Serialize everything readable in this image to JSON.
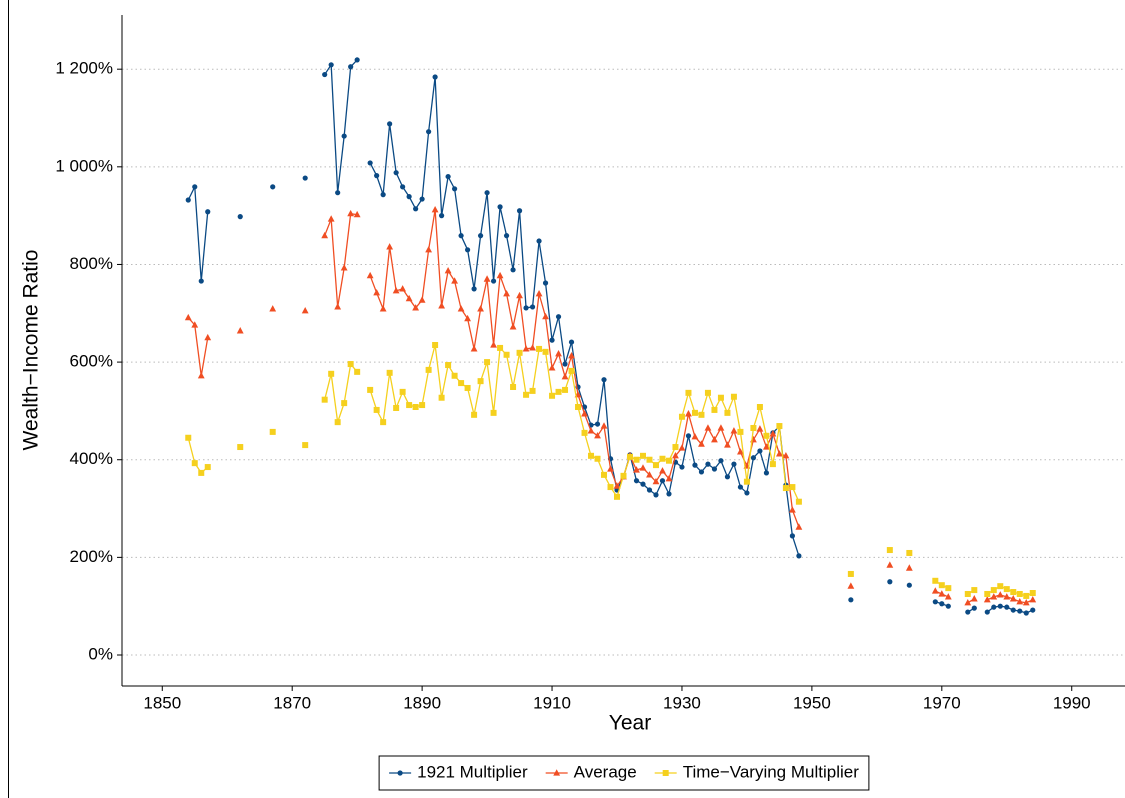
{
  "chart_data": {
    "type": "line",
    "x_label": "Year",
    "y_label": "Wealth−Income Ratio",
    "x": [
      1854,
      1855,
      1856,
      1857,
      1858,
      1862,
      1863,
      1867,
      1868,
      1872,
      1873,
      1875,
      1876,
      1877,
      1878,
      1879,
      1880,
      1881,
      1882,
      1883,
      1884,
      1885,
      1886,
      1887,
      1888,
      1889,
      1890,
      1891,
      1892,
      1893,
      1894,
      1895,
      1896,
      1897,
      1898,
      1899,
      1900,
      1901,
      1902,
      1903,
      1904,
      1905,
      1906,
      1907,
      1908,
      1909,
      1910,
      1911,
      1912,
      1913,
      1914,
      1915,
      1916,
      1917,
      1918,
      1919,
      1920,
      1921,
      1922,
      1923,
      1924,
      1925,
      1926,
      1927,
      1928,
      1929,
      1930,
      1931,
      1932,
      1933,
      1934,
      1935,
      1936,
      1937,
      1938,
      1939,
      1940,
      1941,
      1942,
      1943,
      1944,
      1945,
      1946,
      1947,
      1948,
      1949,
      1956,
      1957,
      1962,
      1963,
      1965,
      1966,
      1969,
      1970,
      1971,
      1972,
      1974,
      1975,
      1976,
      1977,
      1978,
      1979,
      1980,
      1981,
      1982,
      1983,
      1984
    ],
    "series": [
      {
        "name": "1921 Multiplier",
        "color": "#0b4a84",
        "marker": "circle",
        "values": [
          932,
          959,
          766,
          908,
          null,
          898,
          null,
          959,
          null,
          977,
          null,
          1189,
          1209,
          947,
          1063,
          1205,
          1219,
          null,
          1008,
          982,
          943,
          1088,
          988,
          959,
          939,
          914,
          934,
          1072,
          1184,
          900,
          980,
          955,
          859,
          830,
          750,
          859,
          947,
          766,
          918,
          859,
          789,
          910,
          711,
          713,
          848,
          762,
          645,
          693,
          596,
          641,
          549,
          508,
          471,
          473,
          564,
          402,
          338,
          365,
          410,
          357,
          350,
          338,
          328,
          357,
          330,
          395,
          385,
          449,
          389,
          375,
          391,
          381,
          398,
          365,
          391,
          344,
          332,
          404,
          418,
          373,
          455,
          469,
          348,
          244,
          203,
          null,
          113,
          null,
          150,
          null,
          143,
          null,
          109,
          105,
          100,
          null,
          88,
          96,
          null,
          88,
          98,
          100,
          98,
          92,
          90,
          86,
          92
        ]
      },
      {
        "name": "Average",
        "color": "#f04e23",
        "marker": "triangle",
        "values": [
          691,
          676,
          572,
          650,
          null,
          664,
          null,
          709,
          null,
          705,
          null,
          859,
          893,
          713,
          793,
          904,
          902,
          null,
          777,
          742,
          709,
          836,
          746,
          750,
          730,
          711,
          727,
          830,
          912,
          715,
          787,
          766,
          709,
          689,
          627,
          709,
          770,
          635,
          777,
          740,
          672,
          736,
          627,
          629,
          740,
          693,
          588,
          617,
          570,
          613,
          533,
          494,
          459,
          449,
          469,
          381,
          346,
          365,
          408,
          379,
          383,
          369,
          355,
          377,
          361,
          408,
          424,
          494,
          447,
          432,
          465,
          441,
          465,
          430,
          459,
          416,
          387,
          441,
          463,
          426,
          453,
          412,
          408,
          297,
          262,
          null,
          141,
          null,
          184,
          null,
          178,
          null,
          131,
          125,
          119,
          null,
          107,
          115,
          null,
          113,
          119,
          123,
          119,
          115,
          109,
          107,
          113
        ]
      },
      {
        "name": "Time−Varying Multiplier",
        "color": "#f5d01e",
        "marker": "square",
        "values": [
          445,
          393,
          373,
          385,
          null,
          426,
          null,
          457,
          null,
          430,
          null,
          523,
          576,
          477,
          516,
          596,
          580,
          null,
          543,
          502,
          477,
          578,
          506,
          539,
          512,
          508,
          512,
          584,
          635,
          527,
          594,
          572,
          557,
          547,
          492,
          561,
          600,
          496,
          629,
          615,
          549,
          619,
          533,
          541,
          627,
          621,
          531,
          539,
          543,
          582,
          508,
          455,
          408,
          402,
          369,
          344,
          324,
          367,
          406,
          400,
          408,
          400,
          389,
          402,
          398,
          426,
          488,
          537,
          496,
          492,
          537,
          502,
          527,
          496,
          529,
          457,
          355,
          465,
          508,
          449,
          391,
          469,
          342,
          344,
          314,
          null,
          166,
          null,
          215,
          null,
          209,
          null,
          152,
          143,
          137,
          null,
          125,
          133,
          null,
          125,
          133,
          141,
          135,
          129,
          125,
          121,
          127
        ]
      }
    ],
    "xlim": [
      1843.8,
      1998.2
    ],
    "ylim": [
      -63.5,
      1311
    ],
    "xticks": [
      1850,
      1870,
      1890,
      1910,
      1930,
      1950,
      1970,
      1990
    ],
    "yticks": [
      {
        "value": 0,
        "label": "0%"
      },
      {
        "value": 200,
        "label": "200%"
      },
      {
        "value": 400,
        "label": "400%"
      },
      {
        "value": 600,
        "label": "600%"
      },
      {
        "value": 800,
        "label": "800%"
      },
      {
        "value": 1000,
        "label": "1 000%"
      },
      {
        "value": 1200,
        "label": "1 200%"
      }
    ],
    "grid": true,
    "legend": "bottom"
  }
}
